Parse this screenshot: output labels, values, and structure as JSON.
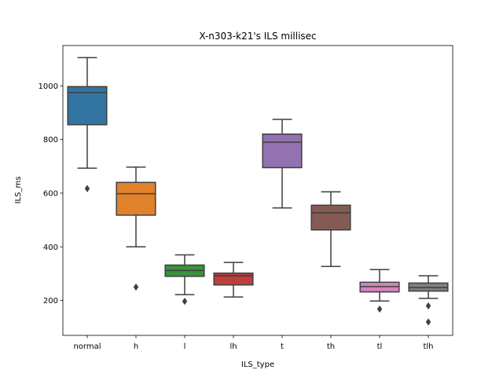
{
  "chart_data": {
    "type": "box",
    "title": "X-n303-k21's ILS millisec",
    "xlabel": "ILS_type",
    "ylabel": "ILS_ms",
    "ylim": [
      70,
      1150
    ],
    "yticks": [
      200,
      400,
      600,
      800,
      1000
    ],
    "grid": false,
    "legend": "none",
    "categories": [
      "normal",
      "h",
      "l",
      "lh",
      "t",
      "th",
      "tl",
      "tlh"
    ],
    "colors": [
      "#3274a1",
      "#e1812c",
      "#3a923a",
      "#c03d3e",
      "#9372b2",
      "#845b53",
      "#d684bd",
      "#7f7f7f"
    ],
    "boxes": [
      {
        "whisker_low": 693,
        "q1": 855,
        "median": 975,
        "q3": 997,
        "whisker_high": 1105,
        "outliers": [
          617
        ]
      },
      {
        "whisker_low": 400,
        "q1": 518,
        "median": 598,
        "q3": 640,
        "whisker_high": 697,
        "outliers": [
          250
        ]
      },
      {
        "whisker_low": 222,
        "q1": 290,
        "median": 312,
        "q3": 332,
        "whisker_high": 370,
        "outliers": [
          197
        ]
      },
      {
        "whisker_low": 213,
        "q1": 258,
        "median": 292,
        "q3": 302,
        "whisker_high": 342,
        "outliers": []
      },
      {
        "whisker_low": 545,
        "q1": 695,
        "median": 790,
        "q3": 820,
        "whisker_high": 875,
        "outliers": []
      },
      {
        "whisker_low": 327,
        "q1": 463,
        "median": 527,
        "q3": 555,
        "whisker_high": 605,
        "outliers": []
      },
      {
        "whisker_low": 198,
        "q1": 232,
        "median": 252,
        "q3": 268,
        "whisker_high": 315,
        "outliers": [
          168
        ]
      },
      {
        "whisker_low": 208,
        "q1": 235,
        "median": 248,
        "q3": 265,
        "whisker_high": 292,
        "outliers": [
          180,
          120
        ]
      }
    ]
  }
}
